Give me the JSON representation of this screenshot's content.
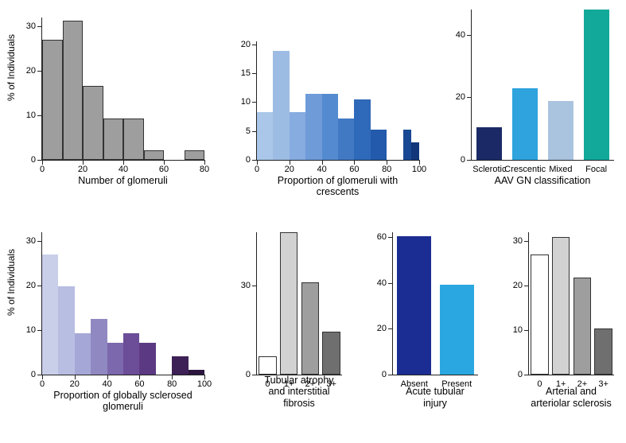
{
  "numGlomeruli": {
    "type": "histogram",
    "xlabel": "Number of glomeruli",
    "ylabel": "% of Individuals",
    "xlim": [
      0,
      80
    ],
    "ylim": [
      0,
      32
    ],
    "yticks": [
      0,
      10,
      20,
      30
    ],
    "xticks": [
      0,
      20,
      40,
      60,
      80
    ],
    "binwidth": 10,
    "bars": [
      {
        "x": 5,
        "y": 27,
        "fill": "#9e9e9e"
      },
      {
        "x": 15,
        "y": 31.3,
        "fill": "#9e9e9e"
      },
      {
        "x": 25,
        "y": 16.6,
        "fill": "#9e9e9e"
      },
      {
        "x": 35,
        "y": 9.3,
        "fill": "#9e9e9e"
      },
      {
        "x": 45,
        "y": 9.3,
        "fill": "#9e9e9e"
      },
      {
        "x": 55,
        "y": 2.1,
        "fill": "#9e9e9e"
      },
      {
        "x": 65,
        "y": 0,
        "fill": "#9e9e9e"
      },
      {
        "x": 75,
        "y": 2.1,
        "fill": "#9e9e9e"
      }
    ],
    "stroke": "#333"
  },
  "crescents": {
    "type": "histogram",
    "xlabel": "Proportion of glomeruli with crescents",
    "xlim": [
      0,
      100
    ],
    "ylim": [
      0,
      20.5
    ],
    "yticks": [
      0,
      5,
      10,
      15,
      20
    ],
    "xticks": [
      0,
      20,
      40,
      60,
      80,
      100
    ],
    "binwidth": 10,
    "bars": [
      {
        "x": 5,
        "y": 8.3,
        "fill": "#aac7e9"
      },
      {
        "x": 15,
        "y": 18.8,
        "fill": "#9dbce4"
      },
      {
        "x": 25,
        "y": 8.3,
        "fill": "#86ace0"
      },
      {
        "x": 35,
        "y": 11.4,
        "fill": "#6f9bd9"
      },
      {
        "x": 45,
        "y": 11.4,
        "fill": "#548bd0"
      },
      {
        "x": 55,
        "y": 7.2,
        "fill": "#4279c3"
      },
      {
        "x": 65,
        "y": 10.4,
        "fill": "#2f69b9"
      },
      {
        "x": 75,
        "y": 5.2,
        "fill": "#235aab"
      },
      {
        "x": 85,
        "y": 0,
        "fill": "#184893"
      },
      {
        "x": 92.5,
        "y": 5.2,
        "fill": "#184893",
        "narrow": 0.5
      },
      {
        "x": 97.5,
        "y": 3.0,
        "fill": "#123679",
        "narrow": 0.5
      }
    ],
    "stroke": "none"
  },
  "aavClass": {
    "type": "bar",
    "xlabel": "AAV GN classification",
    "ylim": [
      0,
      48
    ],
    "yticks": [
      0,
      20,
      40
    ],
    "categories": [
      "Sclerotic",
      "Crescentic",
      "Mixed",
      "Focal"
    ],
    "bars": [
      {
        "label": "Sclerotic",
        "y": 10.4,
        "fill": "#1b2a66"
      },
      {
        "label": "Crescentic",
        "y": 22.9,
        "fill": "#2ea3dd"
      },
      {
        "label": "Mixed",
        "y": 18.8,
        "fill": "#aac3df"
      },
      {
        "label": "Focal",
        "y": 47.9,
        "fill": "#12a89a"
      }
    ],
    "barwidth": 0.72
  },
  "sclerosed": {
    "type": "histogram",
    "xlabel": "Proportion of globally sclerosed glomeruli",
    "ylabel": "% of Individuals",
    "xlim": [
      0,
      100
    ],
    "ylim": [
      0,
      32
    ],
    "yticks": [
      0,
      10,
      20,
      30
    ],
    "xticks": [
      0,
      20,
      40,
      60,
      80,
      100
    ],
    "binwidth": 10,
    "bars": [
      {
        "x": 5,
        "y": 27,
        "fill": "#c9cfe9"
      },
      {
        "x": 15,
        "y": 19.8,
        "fill": "#b8bde2"
      },
      {
        "x": 25,
        "y": 9.3,
        "fill": "#a5a8d6"
      },
      {
        "x": 35,
        "y": 12.5,
        "fill": "#9088c1"
      },
      {
        "x": 45,
        "y": 7.2,
        "fill": "#7c68ad"
      },
      {
        "x": 55,
        "y": 9.3,
        "fill": "#6c4e98"
      },
      {
        "x": 65,
        "y": 7.2,
        "fill": "#5c3a83"
      },
      {
        "x": 75,
        "y": 0,
        "fill": "#4c2b6b"
      },
      {
        "x": 85,
        "y": 4.1,
        "fill": "#3d2055"
      },
      {
        "x": 95,
        "y": 1.0,
        "fill": "#2c1640"
      }
    ],
    "stroke": "none"
  },
  "tubularAtrophy": {
    "type": "bar",
    "xlabel": [
      "Tubular atrophy",
      "and interstitial fibrosis"
    ],
    "ylim": [
      0,
      48
    ],
    "yticks": [
      0,
      30
    ],
    "bars": [
      {
        "label": "0",
        "y": 6.2,
        "fill": "#ffffff",
        "stroke": "#333"
      },
      {
        "label": "1+",
        "y": 47.9,
        "fill": "#d2d2d2",
        "stroke": "#333"
      },
      {
        "label": "2+",
        "y": 31.2,
        "fill": "#9e9e9e",
        "stroke": "#333"
      },
      {
        "label": "3+",
        "y": 14.5,
        "fill": "#6f6f6f",
        "stroke": "#333"
      }
    ],
    "barwidth": 0.85
  },
  "acuteTubular": {
    "type": "bar",
    "xlabel": [
      "Acute tubular",
      "injury"
    ],
    "ylim": [
      0,
      62
    ],
    "yticks": [
      0,
      20,
      40,
      60
    ],
    "bars": [
      {
        "label": "Absent",
        "y": 60.4,
        "fill": "#1b2d92"
      },
      {
        "label": "Present",
        "y": 39.0,
        "fill": "#2aa7e0"
      }
    ],
    "barwidth": 0.8
  },
  "arterial": {
    "type": "bar",
    "xlabel": [
      "Arterial and",
      "arteriolar sclerosis"
    ],
    "ylim": [
      0,
      32
    ],
    "yticks": [
      0,
      10,
      20,
      30
    ],
    "bars": [
      {
        "label": "0",
        "y": 27,
        "fill": "#ffffff",
        "stroke": "#333"
      },
      {
        "label": "1+",
        "y": 31,
        "fill": "#d2d2d2",
        "stroke": "#333"
      },
      {
        "label": "2+",
        "y": 21.8,
        "fill": "#9e9e9e",
        "stroke": "#333"
      },
      {
        "label": "3+",
        "y": 10.4,
        "fill": "#6f6f6f",
        "stroke": "#333"
      }
    ],
    "barwidth": 0.85
  }
}
